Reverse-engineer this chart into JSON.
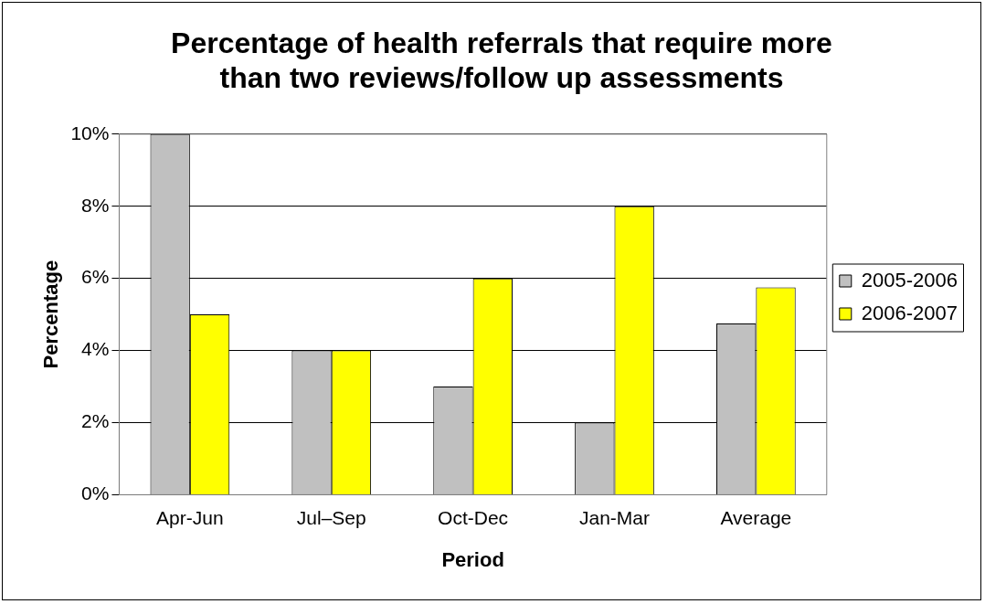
{
  "chart_data": {
    "type": "bar",
    "title": "Percentage of health referrals that require more than two reviews/follow up assessments",
    "xlabel": "Period",
    "ylabel": "Percentage",
    "categories": [
      "Apr-Jun",
      "Jul–Sep",
      "Oct-Dec",
      "Jan-Mar",
      "Average"
    ],
    "series": [
      {
        "name": "2005-2006",
        "color": "#c0c0c0",
        "values": [
          10,
          4,
          3,
          2,
          4.75
        ]
      },
      {
        "name": "2006-2007",
        "color": "#ffff00",
        "values": [
          5,
          4,
          6,
          8,
          5.75
        ]
      }
    ],
    "ylim": [
      0,
      10
    ],
    "yticks": [
      {
        "value": 0,
        "label": "0%"
      },
      {
        "value": 2,
        "label": "2%"
      },
      {
        "value": 4,
        "label": "4%"
      },
      {
        "value": 6,
        "label": "6%"
      },
      {
        "value": 8,
        "label": "8%"
      },
      {
        "value": 10,
        "label": "10%"
      }
    ],
    "grid": "y",
    "legend": "right"
  }
}
